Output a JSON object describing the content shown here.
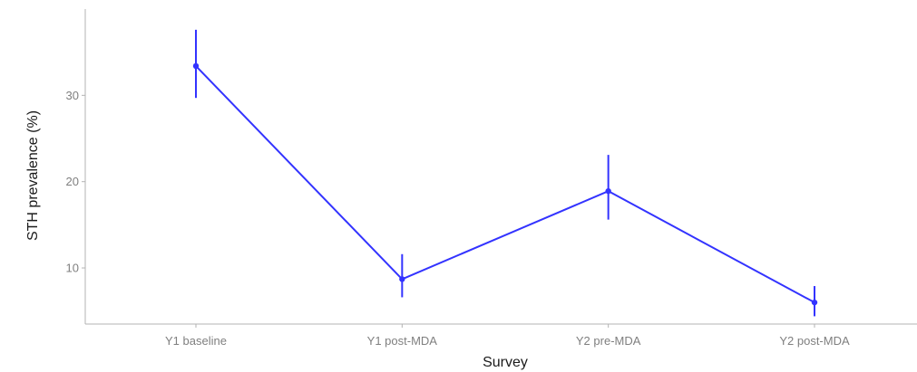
{
  "chart_data": {
    "type": "line",
    "title": "",
    "xlabel": "Survey",
    "ylabel": "STH prevalence (%)",
    "categories": [
      "Y1 baseline",
      "Y1 post-MDA",
      "Y2 pre-MDA",
      "Y2 post-MDA"
    ],
    "series": [
      {
        "values": [
          33.4,
          8.7,
          18.9,
          6.0
        ],
        "lower": [
          29.7,
          6.6,
          15.6,
          4.4
        ],
        "upper": [
          37.6,
          11.6,
          23.1,
          7.9
        ]
      }
    ],
    "yticks": [
      10,
      20,
      30
    ],
    "ylim": [
      3.5,
      40
    ],
    "grid": false,
    "legend": "none",
    "colors": {
      "series": "#3333ff",
      "axis": "#b3b3b3",
      "tick_label": "#7f7f7f",
      "axis_title": "#1a1a1a"
    }
  }
}
